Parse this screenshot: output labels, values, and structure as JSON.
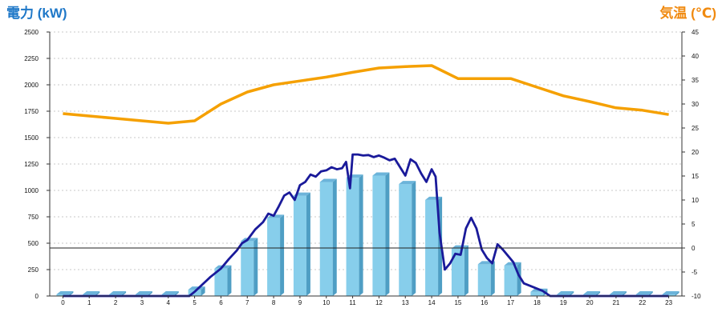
{
  "chart_data": {
    "type": "bar+line",
    "left_title": "電力 (kW)",
    "right_title": "気温 (℃)",
    "categories": [
      "0",
      "1",
      "2",
      "3",
      "4",
      "5",
      "6",
      "7",
      "8",
      "9",
      "10",
      "11",
      "12",
      "13",
      "14",
      "15",
      "16",
      "17",
      "18",
      "19",
      "20",
      "21",
      "22",
      "23"
    ],
    "y_left": {
      "min": 0,
      "max": 2500,
      "ticks": [
        "0",
        "250",
        "500",
        "750",
        "1000",
        "1250",
        "1500",
        "1750",
        "2000",
        "2250",
        "2500"
      ]
    },
    "y_right": {
      "min": -10,
      "max": 45,
      "ticks": [
        "-10",
        "-5",
        "0",
        "5",
        "10",
        "15",
        "20",
        "25",
        "30",
        "35",
        "40",
        "45"
      ]
    },
    "grid": true,
    "series": [
      {
        "kind": "bar",
        "axis": "left",
        "color": "#87ceeb",
        "values": [
          0,
          0,
          0,
          0,
          0,
          60,
          260,
          520,
          740,
          950,
          1080,
          1120,
          1140,
          1060,
          910,
          450,
          300,
          290,
          40,
          0,
          0,
          0,
          0,
          0
        ]
      },
      {
        "kind": "line",
        "axis": "right",
        "color": "#f5a000",
        "values": [
          28,
          27.5,
          27,
          26.5,
          26,
          26.5,
          30,
          32.5,
          34,
          34.8,
          35.6,
          36.6,
          37.5,
          37.8,
          38,
          35.3,
          35.3,
          35.3,
          33.5,
          31.7,
          30.5,
          29.2,
          28.7,
          27.8
        ]
      },
      {
        "kind": "line",
        "axis": "left",
        "color": "#1a1a9a",
        "x": [
          0,
          1,
          2,
          3,
          4,
          4.8,
          5,
          5.3,
          5.6,
          6,
          6.3,
          6.6,
          6.8,
          7,
          7.3,
          7.6,
          7.8,
          8,
          8.2,
          8.4,
          8.6,
          8.8,
          9,
          9.2,
          9.4,
          9.6,
          9.8,
          10,
          10.2,
          10.4,
          10.6,
          10.75,
          10.9,
          11,
          11.2,
          11.4,
          11.6,
          11.8,
          12,
          12.2,
          12.4,
          12.6,
          12.8,
          13,
          13.2,
          13.4,
          13.6,
          13.8,
          14,
          14.15,
          14.3,
          14.5,
          14.7,
          14.9,
          15.1,
          15.3,
          15.5,
          15.7,
          15.9,
          16.1,
          16.3,
          16.5,
          16.7,
          16.9,
          17.1,
          17.3,
          17.5,
          17.7,
          17.9,
          18.2,
          18.5,
          19,
          20,
          21,
          22,
          23
        ],
        "values": [
          0,
          0,
          0,
          0,
          0,
          0,
          40,
          110,
          180,
          260,
          350,
          430,
          500,
          530,
          630,
          700,
          780,
          760,
          850,
          950,
          980,
          910,
          1050,
          1080,
          1150,
          1130,
          1180,
          1190,
          1220,
          1200,
          1210,
          1270,
          1020,
          1340,
          1340,
          1330,
          1335,
          1315,
          1330,
          1310,
          1285,
          1300,
          1220,
          1140,
          1295,
          1260,
          1160,
          1080,
          1200,
          1130,
          600,
          250,
          310,
          400,
          390,
          640,
          740,
          640,
          440,
          360,
          310,
          490,
          440,
          380,
          320,
          200,
          120,
          100,
          80,
          50,
          0,
          0,
          0,
          0,
          0,
          0
        ]
      }
    ]
  }
}
